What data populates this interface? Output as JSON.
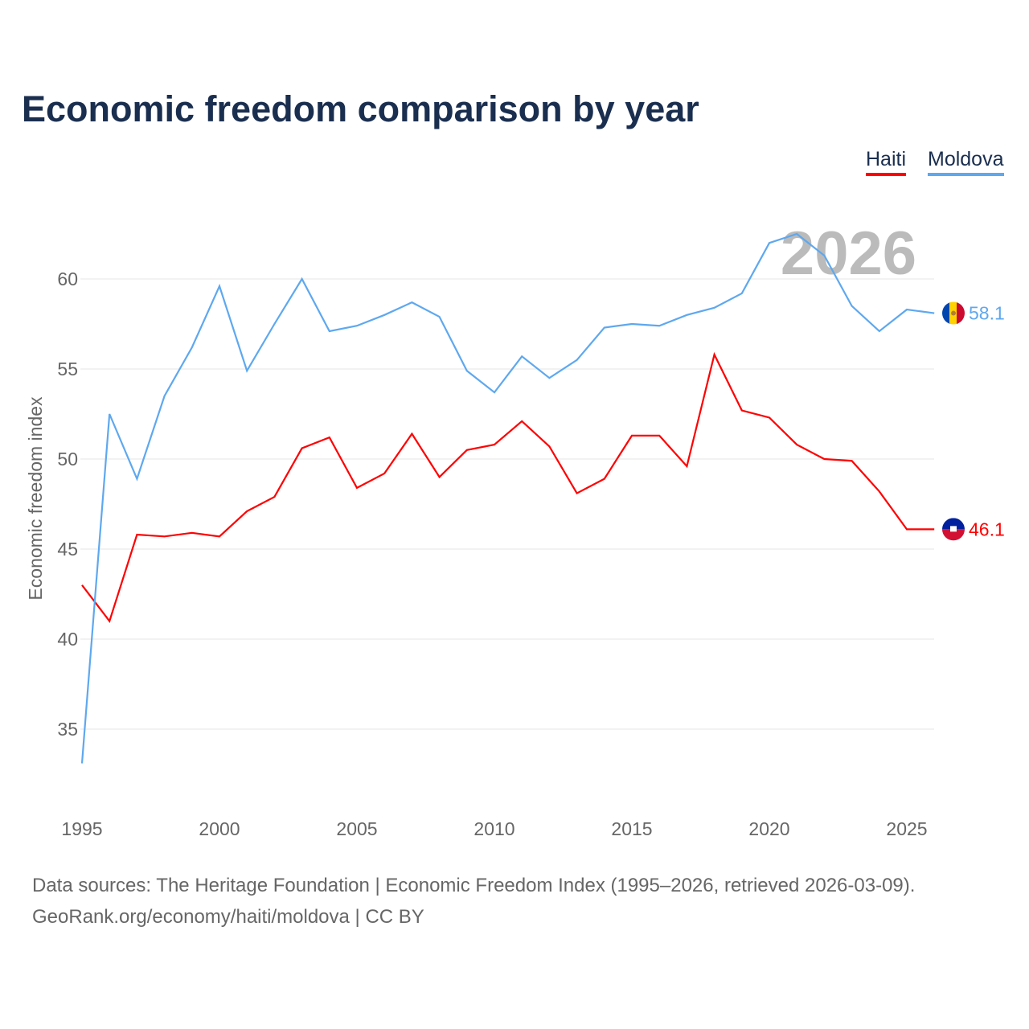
{
  "title": "Economic freedom comparison by year",
  "chart_data": {
    "type": "line",
    "title": "Economic freedom comparison by year",
    "xlabel": "",
    "ylabel": "Economic freedom index",
    "x": [
      1995,
      1996,
      1997,
      1998,
      1999,
      2000,
      2001,
      2002,
      2003,
      2004,
      2005,
      2006,
      2007,
      2008,
      2009,
      2010,
      2011,
      2012,
      2013,
      2014,
      2015,
      2016,
      2017,
      2018,
      2019,
      2020,
      2021,
      2022,
      2023,
      2024,
      2025,
      2026
    ],
    "xticks": [
      1995,
      2000,
      2005,
      2010,
      2015,
      2020,
      2025
    ],
    "yticks": [
      35,
      40,
      45,
      50,
      55,
      60
    ],
    "ylim": [
      32,
      63
    ],
    "grid": true,
    "legend_placement": "top-right",
    "year_watermark": "2026",
    "series": [
      {
        "name": "Haiti",
        "color": "#ff0000",
        "end_label": "46.1",
        "values": [
          43.0,
          41.0,
          45.8,
          45.7,
          45.9,
          45.7,
          47.1,
          47.9,
          50.6,
          51.2,
          48.4,
          49.2,
          51.4,
          49.0,
          50.5,
          50.8,
          52.1,
          50.7,
          48.1,
          48.9,
          51.3,
          51.3,
          49.6,
          55.8,
          52.7,
          52.3,
          50.8,
          50.0,
          49.9,
          48.2,
          46.1,
          46.1
        ]
      },
      {
        "name": "Moldova",
        "color": "#5ea8ef",
        "end_label": "58.1",
        "values": [
          33.1,
          52.5,
          48.9,
          53.5,
          56.2,
          59.6,
          54.9,
          57.5,
          60.0,
          57.1,
          57.4,
          58.0,
          58.7,
          57.9,
          54.9,
          53.7,
          55.7,
          54.5,
          55.5,
          57.3,
          57.5,
          57.4,
          58.0,
          58.4,
          59.2,
          62.0,
          62.5,
          61.3,
          58.5,
          57.1,
          58.3,
          58.1
        ]
      }
    ]
  },
  "sources": {
    "line1": "Data sources: The Heritage Foundation | Economic Freedom Index (1995–2026, retrieved 2026-03-09).",
    "line2": "GeoRank.org/economy/haiti/moldova | CC BY"
  }
}
